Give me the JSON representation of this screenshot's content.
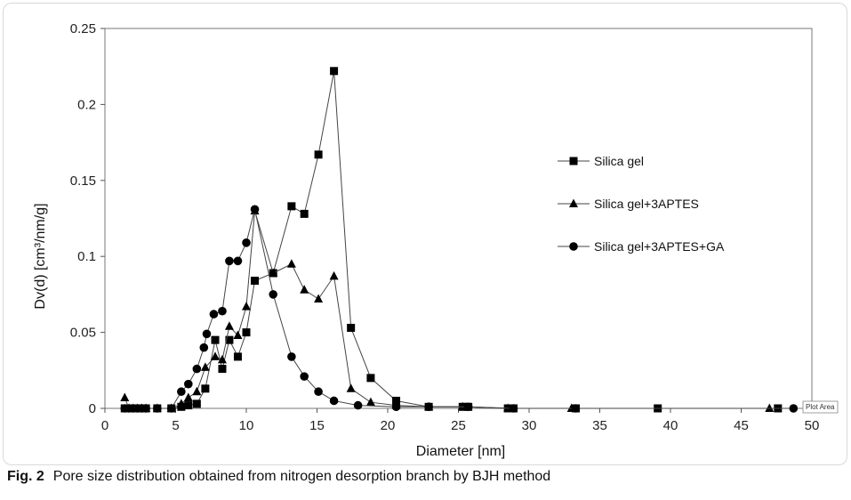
{
  "chart_data": {
    "type": "line",
    "title": "",
    "xlabel": "Diameter [nm]",
    "ylabel": "Dv(d) [cm³/nm/g]",
    "xlim": [
      0,
      50
    ],
    "ylim": [
      0,
      0.25
    ],
    "x_ticks": [
      0,
      5,
      10,
      15,
      20,
      25,
      30,
      35,
      40,
      45,
      50
    ],
    "y_ticks": [
      0,
      0.05,
      0.1,
      0.15,
      0.2,
      0.25
    ],
    "y_tick_labels": [
      "0",
      "0.05",
      "0.1",
      "0.15",
      "0.2",
      "0.25"
    ],
    "grid": false,
    "legend_position": "right",
    "series": [
      {
        "name": "Silica gel",
        "marker": "square",
        "points": [
          [
            1.4,
            0
          ],
          [
            1.7,
            0
          ],
          [
            2.0,
            0
          ],
          [
            2.3,
            0
          ],
          [
            2.6,
            0
          ],
          [
            2.9,
            0
          ],
          [
            3.7,
            0
          ],
          [
            4.7,
            0
          ],
          [
            5.4,
            0.001
          ],
          [
            5.9,
            0.002
          ],
          [
            6.5,
            0.003
          ],
          [
            7.1,
            0.013
          ],
          [
            7.8,
            0.045
          ],
          [
            8.3,
            0.026
          ],
          [
            8.8,
            0.045
          ],
          [
            9.4,
            0.034
          ],
          [
            10.0,
            0.05
          ],
          [
            10.6,
            0.084
          ],
          [
            11.9,
            0.089
          ],
          [
            13.2,
            0.133
          ],
          [
            14.1,
            0.128
          ],
          [
            15.1,
            0.167
          ],
          [
            16.2,
            0.222
          ],
          [
            17.4,
            0.053
          ],
          [
            18.8,
            0.02
          ],
          [
            20.6,
            0.005
          ],
          [
            22.9,
            0.001
          ],
          [
            25.3,
            0.001
          ],
          [
            25.7,
            0.001
          ],
          [
            28.5,
            0
          ],
          [
            28.9,
            0
          ],
          [
            33.3,
            0
          ],
          [
            39.1,
            0
          ],
          [
            47.6,
            0
          ]
        ]
      },
      {
        "name": "Silica gel+3APTES",
        "marker": "triangle",
        "points": [
          [
            1.4,
            0.007
          ],
          [
            1.7,
            0
          ],
          [
            2.0,
            0
          ],
          [
            2.3,
            0
          ],
          [
            2.6,
            0
          ],
          [
            2.9,
            0
          ],
          [
            3.7,
            0
          ],
          [
            4.7,
            0
          ],
          [
            5.4,
            0.003
          ],
          [
            5.9,
            0.007
          ],
          [
            6.5,
            0.011
          ],
          [
            7.1,
            0.027
          ],
          [
            7.8,
            0.034
          ],
          [
            8.3,
            0.032
          ],
          [
            8.8,
            0.054
          ],
          [
            9.4,
            0.048
          ],
          [
            10.0,
            0.067
          ],
          [
            10.6,
            0.13
          ],
          [
            11.9,
            0.089
          ],
          [
            13.2,
            0.095
          ],
          [
            14.1,
            0.078
          ],
          [
            15.1,
            0.072
          ],
          [
            16.2,
            0.087
          ],
          [
            17.4,
            0.013
          ],
          [
            18.8,
            0.004
          ],
          [
            20.6,
            0.002
          ],
          [
            22.9,
            0.001
          ],
          [
            25.3,
            0.001
          ],
          [
            28.5,
            0
          ],
          [
            33.0,
            0
          ],
          [
            47.0,
            0
          ]
        ]
      },
      {
        "name": "Silica gel+3APTES+GA",
        "marker": "circle",
        "points": [
          [
            1.4,
            0
          ],
          [
            1.7,
            0
          ],
          [
            2.0,
            0
          ],
          [
            2.3,
            0
          ],
          [
            2.6,
            0
          ],
          [
            2.9,
            0
          ],
          [
            3.7,
            0
          ],
          [
            4.7,
            0
          ],
          [
            5.4,
            0.011
          ],
          [
            5.9,
            0.016
          ],
          [
            6.5,
            0.026
          ],
          [
            7.0,
            0.04
          ],
          [
            7.2,
            0.049
          ],
          [
            7.7,
            0.062
          ],
          [
            8.3,
            0.064
          ],
          [
            8.8,
            0.097
          ],
          [
            9.4,
            0.097
          ],
          [
            10.0,
            0.109
          ],
          [
            10.6,
            0.131
          ],
          [
            11.9,
            0.075
          ],
          [
            13.2,
            0.034
          ],
          [
            14.1,
            0.021
          ],
          [
            15.1,
            0.011
          ],
          [
            16.2,
            0.005
          ],
          [
            17.9,
            0.002
          ],
          [
            20.6,
            0.001
          ],
          [
            22.9,
            0.001
          ],
          [
            25.7,
            0.001
          ],
          [
            28.9,
            0
          ],
          [
            33.3,
            0
          ],
          [
            48.7,
            0
          ]
        ]
      }
    ]
  },
  "tooltip_text": "Plot Area",
  "caption": {
    "fig_label": "Fig. 2",
    "text": "Pore size distribution obtained from nitrogen desorption branch by BJH method"
  }
}
